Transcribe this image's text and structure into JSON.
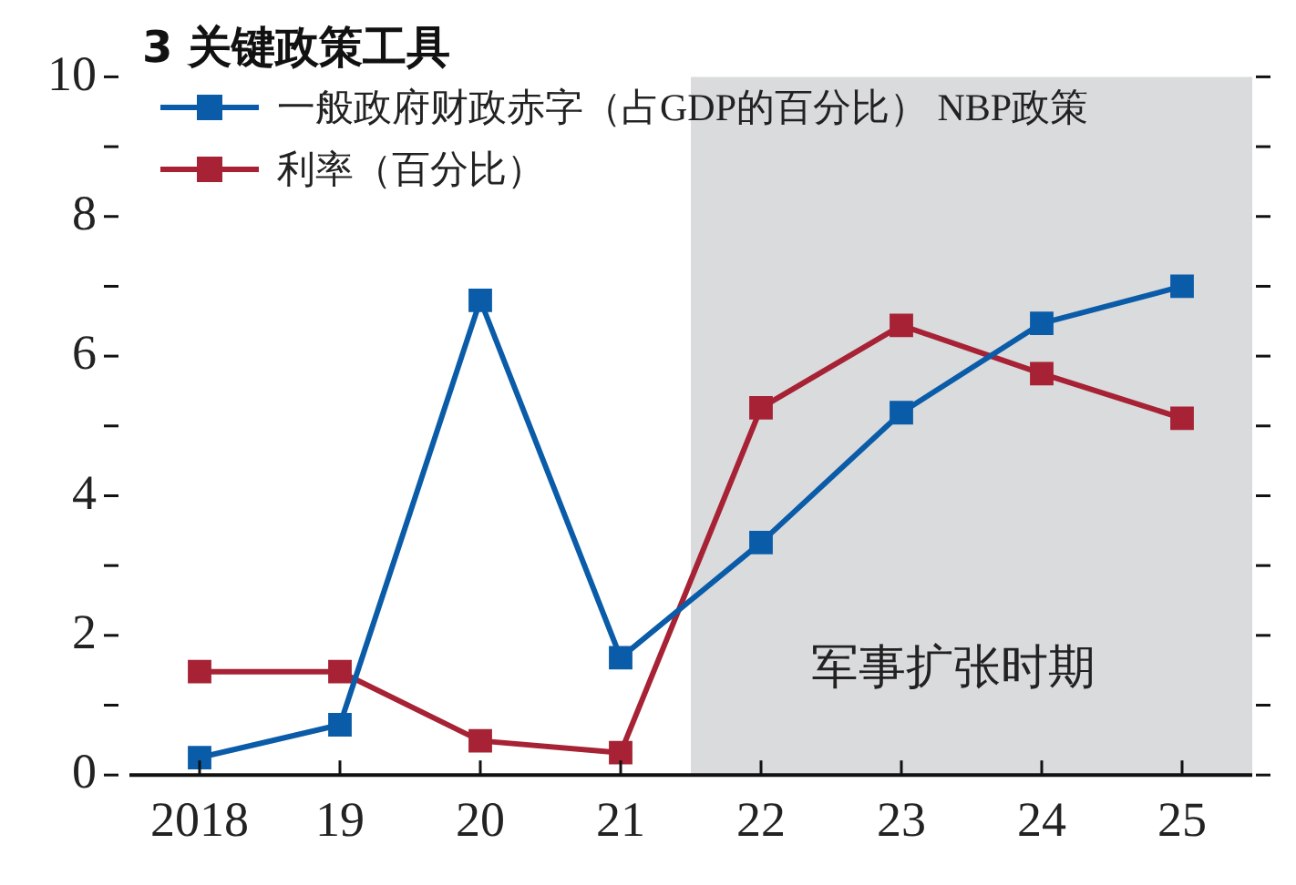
{
  "chart_data": {
    "type": "line",
    "title": "3 关键政策工具",
    "x": [
      2018,
      2019,
      2020,
      2021,
      2022,
      2023,
      2024,
      2025
    ],
    "xlim": [
      2017.5,
      2025.5
    ],
    "xticks": [
      {
        "value": 2018,
        "label": "2018"
      },
      {
        "value": 2019,
        "label": "19"
      },
      {
        "value": 2020,
        "label": "20"
      },
      {
        "value": 2021,
        "label": "21"
      },
      {
        "value": 2022,
        "label": "22"
      },
      {
        "value": 2023,
        "label": "23"
      },
      {
        "value": 2024,
        "label": "24"
      },
      {
        "value": 2025,
        "label": "25"
      }
    ],
    "ylim": [
      0,
      10
    ],
    "yticks": [
      0,
      {
        "value": 1,
        "label": null
      },
      2,
      {
        "value": 3,
        "label": null
      },
      4,
      {
        "value": 5,
        "label": null
      },
      6,
      {
        "value": 7,
        "label": null
      },
      8,
      {
        "value": 9,
        "label": null
      },
      10
    ],
    "series": [
      {
        "name": "一般政府财政赤字（占GDP的百分比） NBP政策",
        "color": "#0a5ca8",
        "values": [
          0.25,
          0.72,
          6.8,
          1.68,
          3.33,
          5.19,
          6.47,
          7.0
        ]
      },
      {
        "name": "利率（百分比）",
        "color": "#a62234",
        "values": [
          1.48,
          1.48,
          0.49,
          0.32,
          5.26,
          6.44,
          5.75,
          5.11
        ]
      }
    ],
    "bands": [
      {
        "axis": "x",
        "from": 2021.5,
        "to": 2025.5,
        "label": "军事扩张时期",
        "color": "#dadbdd"
      }
    ],
    "marker": "square",
    "grid": false,
    "legend": "top left"
  }
}
